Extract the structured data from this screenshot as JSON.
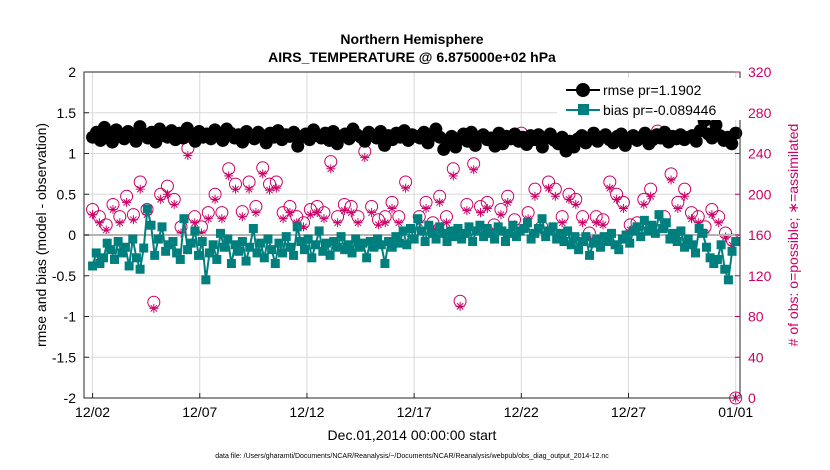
{
  "colors": {
    "rmse": "#000000",
    "bias": "#007f7f",
    "obs": "#cc0066",
    "grid": "#d9d9d9",
    "zero": "#b3b3b3"
  },
  "footer": "data file: /Users/gharamti/Documents/NCAR/Reanalysis/~/Documents/NCAR/Reanalysis/webpub/obs_diag_output_2014-12.nc",
  "chart_data": {
    "type": "line",
    "title": [
      "Northern Hemisphere",
      "AIRS_TEMPERATURE @ 6.875000e+02 hPa"
    ],
    "xlabel": "Dec.01,2014 00:00:00 start",
    "ylabel": "rmse and bias (model - observation)",
    "ylabel_right": "# of obs: o=possible; ∗=assimilated",
    "x_unit": "days since Dec.01,2014 00:00:00",
    "xlim": [
      0.6,
      31.2
    ],
    "ylim": [
      -2,
      2
    ],
    "ylim_right": [
      0,
      320
    ],
    "xticks": [
      {
        "x": 1,
        "label": "12/02"
      },
      {
        "x": 6,
        "label": "12/07"
      },
      {
        "x": 11,
        "label": "12/12"
      },
      {
        "x": 16,
        "label": "12/17"
      },
      {
        "x": 21,
        "label": "12/22"
      },
      {
        "x": 26,
        "label": "12/27"
      },
      {
        "x": 31,
        "label": "01/01"
      }
    ],
    "yticks": [
      "-2",
      "-1.5",
      "-1",
      "-0.5",
      "0",
      "0.5",
      "1",
      "1.5",
      "2"
    ],
    "yticks_right": [
      "0",
      "40",
      "80",
      "120",
      "160",
      "200",
      "240",
      "280",
      "320"
    ],
    "grid": true,
    "legend_position": "top-right",
    "series": [
      {
        "name": "rmse pr=1.1902",
        "axis": "left",
        "marker": "filled-circle",
        "values": [
          1.2,
          1.26,
          1.16,
          1.32,
          1.23,
          1.14,
          1.29,
          1.22,
          1.18,
          1.27,
          1.21,
          1.15,
          1.33,
          1.24,
          1.19,
          1.26,
          1.14,
          1.3,
          1.22,
          1.2,
          1.28,
          1.17,
          1.25,
          1.19,
          1.31,
          1.23,
          1.15,
          1.27,
          1.2,
          1.24,
          1.18,
          1.29,
          1.22,
          1.16,
          1.3,
          1.25,
          1.19,
          1.23,
          1.14,
          1.27,
          1.21,
          1.18,
          1.26,
          1.22,
          1.13,
          1.25,
          1.2,
          1.28,
          1.17,
          1.23,
          1.21,
          1.26,
          1.09,
          1.2,
          1.24,
          1.17,
          1.29,
          1.22,
          1.19,
          1.25,
          1.16,
          1.27,
          1.12,
          1.21,
          1.24,
          1.18,
          1.3,
          1.23,
          1.2,
          1.15,
          1.26,
          1.22,
          1.19,
          1.27,
          1.1,
          1.22,
          1.17,
          1.25,
          1.2,
          1.28,
          1.16,
          1.23,
          1.21,
          1.19,
          1.26,
          1.13,
          1.22,
          1.3,
          1.2,
          1.05,
          1.14,
          1.21,
          1.08,
          1.18,
          1.24,
          1.15,
          1.26,
          1.1,
          1.2,
          1.23,
          1.17,
          1.19,
          1.09,
          1.25,
          1.12,
          1.21,
          1.18,
          1.24,
          1.15,
          1.2,
          1.11,
          1.22,
          1.17,
          1.23,
          1.08,
          1.19,
          1.24,
          1.16,
          1.12,
          1.2,
          1.03,
          1.15,
          1.08,
          1.18,
          1.22,
          1.13,
          1.19,
          1.25,
          1.15,
          1.2,
          1.23,
          1.17,
          1.13,
          1.21,
          1.24,
          1.1,
          1.18,
          1.22,
          1.16,
          1.2,
          1.25,
          1.12,
          1.17,
          1.23,
          1.19,
          1.26,
          1.14,
          1.21,
          1.18,
          1.23,
          1.17,
          1.2,
          1.22,
          1.15,
          1.28,
          1.4,
          1.24,
          1.19,
          1.35,
          1.22,
          1.16,
          1.2,
          1.12,
          1.25
        ]
      },
      {
        "name": "bias pr=-0.089446",
        "axis": "left",
        "marker": "filled-square",
        "values": [
          -0.38,
          -0.22,
          -0.35,
          -0.28,
          -0.1,
          -0.18,
          -0.3,
          -0.08,
          -0.22,
          -0.15,
          -0.38,
          -0.05,
          -0.28,
          -0.42,
          -0.16,
          0.32,
          0.12,
          -0.25,
          -0.05,
          0.1,
          -0.2,
          -0.12,
          -0.08,
          -0.22,
          -0.3,
          0.2,
          -0.18,
          -0.1,
          0.05,
          -0.25,
          -0.08,
          -0.55,
          -0.22,
          -0.12,
          -0.3,
          0.02,
          -0.15,
          -0.05,
          -0.35,
          -0.12,
          -0.2,
          -0.08,
          -0.32,
          -0.15,
          0.08,
          -0.22,
          -0.1,
          -0.28,
          -0.05,
          -0.18,
          -0.35,
          -0.1,
          -0.22,
          -0.02,
          -0.15,
          -0.25,
          0.1,
          -0.08,
          -0.18,
          -0.05,
          -0.28,
          -0.12,
          0.05,
          -0.2,
          -0.1,
          -0.25,
          -0.08,
          -0.15,
          -0.02,
          -0.18,
          -0.12,
          -0.22,
          -0.05,
          -0.15,
          -0.1,
          -0.28,
          -0.08,
          -0.15,
          -0.05,
          -0.12,
          -0.35,
          -0.08,
          -0.15,
          -0.02,
          -0.1,
          0.05,
          -0.12,
          0.08,
          -0.05,
          0.2,
          0.05,
          -0.08,
          0.12,
          0.02,
          -0.05,
          0.1,
          0.02,
          -0.08,
          0.05,
          -0.02,
          0.08,
          -0.05,
          0.02,
          0.1,
          -0.08,
          0.05,
          0.12,
          -0.02,
          0.08,
          0.02,
          -0.05,
          0.1,
          0.05,
          -0.08,
          0.02,
          0.12,
          -0.02,
          0.05,
          0.08,
          0.15,
          -0.05,
          0.02,
          0.08,
          0.2,
          -0.02,
          0.05,
          0.1,
          -0.05,
          0.02,
          -0.08,
          0.05,
          -0.12,
          -0.02,
          -0.18,
          -0.08,
          -0.02,
          -0.25,
          -0.1,
          -0.05,
          -0.15,
          -0.02,
          -0.08,
          0.02,
          -0.12,
          -0.18,
          -0.05,
          0.0,
          -0.1,
          0.05,
          0.1,
          -0.02,
          0.18,
          0.05,
          0.12,
          0.02,
          0.25,
          0.08,
          0.15,
          -0.05,
          0.02,
          -0.08,
          0.05,
          -0.15,
          -0.05,
          -0.12,
          -0.22,
          0.08,
          0.02,
          -0.15,
          -0.28,
          -0.35,
          -0.3,
          -0.12,
          -0.42,
          -0.55,
          -0.2,
          -0.08
        ]
      },
      {
        "name": "possible",
        "axis": "right",
        "marker": "open-circle",
        "values": [
          185,
          175,
          178,
          195,
          170,
          168,
          190,
          182,
          178,
          188,
          198,
          172,
          180,
          168,
          212,
          162,
          185,
          192,
          94,
          185,
          200,
          170,
          208,
          172,
          195,
          178,
          168,
          162,
          245,
          188,
          178,
          205,
          168,
          190,
          182,
          172,
          200,
          170,
          182,
          188,
          225,
          178,
          210,
          168,
          183,
          170,
          212,
          175,
          188,
          220,
          226,
          205,
          210,
          188,
          212,
          170,
          182,
          165,
          188,
          175,
          178,
          198,
          172,
          193,
          185,
          182,
          188,
          178,
          182,
          205,
          232,
          188,
          178,
          212,
          190,
          170,
          188,
          195,
          178,
          172,
          242,
          168,
          188,
          196,
          175,
          185,
          178,
          200,
          192,
          170,
          178,
          188,
          212,
          170,
          162,
          220,
          178,
          165,
          192,
          182,
          172,
          188,
          198,
          168,
          178,
          182,
          225,
          168,
          95,
          175,
          190,
          180,
          230,
          182,
          188,
          212,
          192,
          178,
          170,
          230,
          185,
          190,
          198,
          170,
          175,
          195,
          260,
          248,
          182,
          172,
          205,
          192,
          168,
          188,
          212,
          175,
          205,
          182,
          178,
          168,
          200,
          182,
          195,
          178,
          178,
          245,
          162,
          185,
          178,
          202,
          175,
          188,
          212,
          245,
          200,
          178,
          192,
          180,
          170,
          165,
          172,
          180,
          195,
          178,
          205,
          200,
          262,
          190,
          178,
          165,
          220,
          178,
          192,
          188,
          205,
          245,
          182,
          170,
          178,
          200,
          168,
          180,
          185,
          205,
          178,
          188,
          162,
          148,
          155,
          0
        ]
      },
      {
        "name": "assimilated",
        "axis": "right",
        "marker": "asterisk",
        "values": [
          180,
          170,
          172,
          190,
          165,
          162,
          185,
          178,
          172,
          182,
          192,
          165,
          175,
          162,
          205,
          158,
          180,
          185,
          88,
          178,
          195,
          165,
          200,
          168,
          190,
          172,
          162,
          158,
          238,
          182,
          172,
          198,
          162,
          184,
          176,
          168,
          195,
          165,
          176,
          182,
          218,
          172,
          205,
          162,
          178,
          165,
          205,
          170,
          182,
          214,
          220,
          198,
          204,
          182,
          206,
          165,
          176,
          160,
          182,
          170,
          172,
          192,
          168,
          188,
          180,
          176,
          182,
          172,
          176,
          198,
          225,
          182,
          172,
          206,
          184,
          165,
          182,
          190,
          172,
          168,
          236,
          162,
          182,
          190,
          170,
          180,
          172,
          195,
          186,
          165,
          172,
          182,
          206,
          165,
          158,
          214,
          172,
          160,
          186,
          176,
          168,
          182,
          192,
          162,
          172,
          176,
          218,
          162,
          90,
          170,
          184,
          175,
          224,
          176,
          182,
          206,
          186,
          172,
          165,
          224,
          180,
          184,
          192,
          165,
          170,
          190,
          252,
          242,
          176,
          168,
          198,
          186,
          162,
          182,
          206,
          170,
          198,
          176,
          172,
          162,
          195,
          176,
          190,
          172,
          172,
          238,
          158,
          180,
          172,
          196,
          170,
          182,
          206,
          238,
          195,
          172,
          186,
          175,
          165,
          160,
          168,
          175,
          190,
          172,
          198,
          195,
          255,
          184,
          172,
          160,
          214,
          172,
          186,
          182,
          198,
          238,
          176,
          165,
          172,
          195,
          162,
          175,
          180,
          198,
          172,
          182,
          158,
          142,
          150,
          0
        ]
      }
    ]
  }
}
